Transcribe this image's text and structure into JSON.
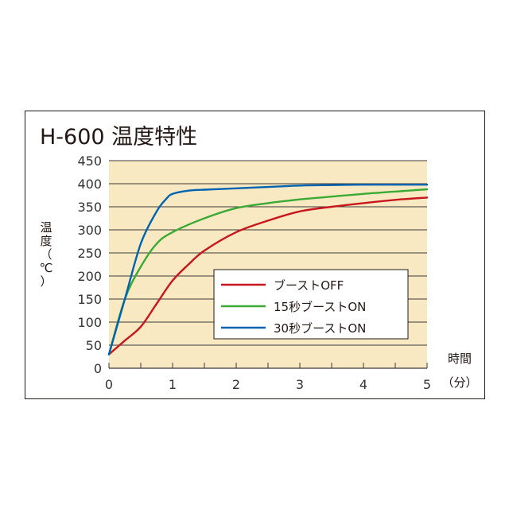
{
  "chart_data": {
    "type": "line",
    "title": "H-600 温度特性",
    "ylabel_chars": [
      "温",
      "度",
      "（",
      "℃",
      "）"
    ],
    "xlabel_top": "時間",
    "xlabel_bottom": "（分）",
    "xlim": [
      0,
      5
    ],
    "ylim": [
      0,
      450
    ],
    "xticks": [
      "0",
      "1",
      "2",
      "3",
      "4",
      "5"
    ],
    "yticks": [
      "450",
      "400",
      "350",
      "300",
      "250",
      "200",
      "150",
      "100",
      "50",
      "0"
    ],
    "grid": "horizontal",
    "plot_background": "#f8e9c3",
    "legend_position": "center-right",
    "series": [
      {
        "name": "ブーストOFF",
        "color": "#c8161d",
        "x": [
          0,
          0.25,
          0.5,
          0.75,
          1.0,
          1.25,
          1.5,
          2.0,
          2.5,
          3.0,
          3.5,
          4.0,
          4.5,
          5.0
        ],
        "y": [
          30,
          60,
          90,
          140,
          190,
          225,
          255,
          295,
          320,
          340,
          350,
          358,
          365,
          370
        ]
      },
      {
        "name": "15秒ブーストON",
        "color": "#3aaa35",
        "x": [
          0,
          0.25,
          0.5,
          0.75,
          1.0,
          1.5,
          2.0,
          2.5,
          3.0,
          3.5,
          4.0,
          4.5,
          5.0
        ],
        "y": [
          30,
          150,
          220,
          270,
          295,
          325,
          347,
          358,
          366,
          372,
          378,
          383,
          388
        ]
      },
      {
        "name": "30秒ブーストON",
        "color": "#0063b0",
        "x": [
          0,
          0.25,
          0.5,
          0.75,
          0.9,
          1.0,
          1.25,
          1.5,
          2.0,
          2.5,
          3.0,
          3.5,
          4.0,
          5.0
        ],
        "y": [
          30,
          150,
          270,
          340,
          367,
          378,
          385,
          387,
          390,
          393,
          396,
          397,
          398,
          398
        ]
      }
    ]
  }
}
